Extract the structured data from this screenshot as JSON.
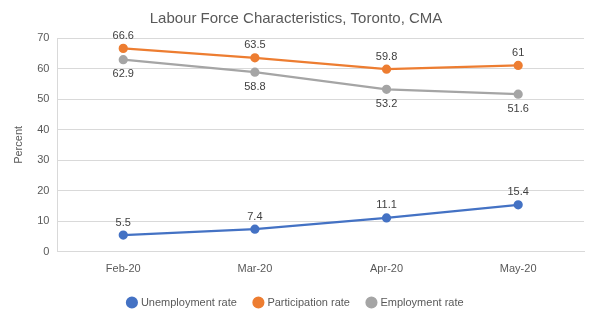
{
  "chart_data": {
    "type": "line",
    "title": "Labour Force Characteristics, Toronto, CMA",
    "ylabel": "Percent",
    "categories": [
      "Feb-20",
      "Mar-20",
      "Apr-20",
      "May-20"
    ],
    "series": [
      {
        "name": "Unemployment rate",
        "color": "#4472c4",
        "marker": "circle",
        "line_style": "solid",
        "values": [
          5.5,
          7.4,
          11.1,
          15.4
        ]
      },
      {
        "name": "Participation rate",
        "color": "#ed7d31",
        "marker": "circle",
        "line_style": "solid",
        "values": [
          66.6,
          63.5,
          59.8,
          61
        ]
      },
      {
        "name": "Employment rate",
        "color": "#a5a5a5",
        "marker": "circle",
        "line_style": "solid",
        "values": [
          62.9,
          58.8,
          53.2,
          51.6
        ]
      }
    ],
    "ylim": [
      0,
      70
    ],
    "yticks": [
      0,
      10,
      20,
      30,
      40,
      50,
      60,
      70
    ],
    "grid": true,
    "legend": "bottom",
    "data_labels": true
  }
}
